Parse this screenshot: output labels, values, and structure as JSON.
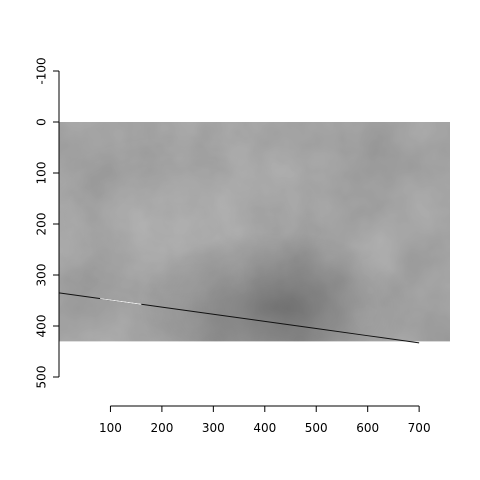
{
  "chart_data": {
    "type": "image-raster",
    "title": "",
    "xlabel": "",
    "ylabel": "",
    "y_reversed": true,
    "xlim": [
      0,
      760
    ],
    "ylim": [
      500,
      -100
    ],
    "x_ticks": [
      100,
      200,
      300,
      400,
      500,
      600,
      700
    ],
    "y_ticks": [
      -100,
      0,
      100,
      200,
      300,
      400,
      500
    ],
    "raster": {
      "x_range": [
        0,
        760
      ],
      "y_range": [
        0,
        430
      ],
      "colormap": "grayscale",
      "base_color": "#858585"
    },
    "line": {
      "x": [
        0,
        100,
        200,
        300,
        400,
        500,
        600,
        700
      ],
      "y": [
        335,
        349,
        363,
        377,
        391,
        405,
        419,
        433
      ]
    }
  }
}
